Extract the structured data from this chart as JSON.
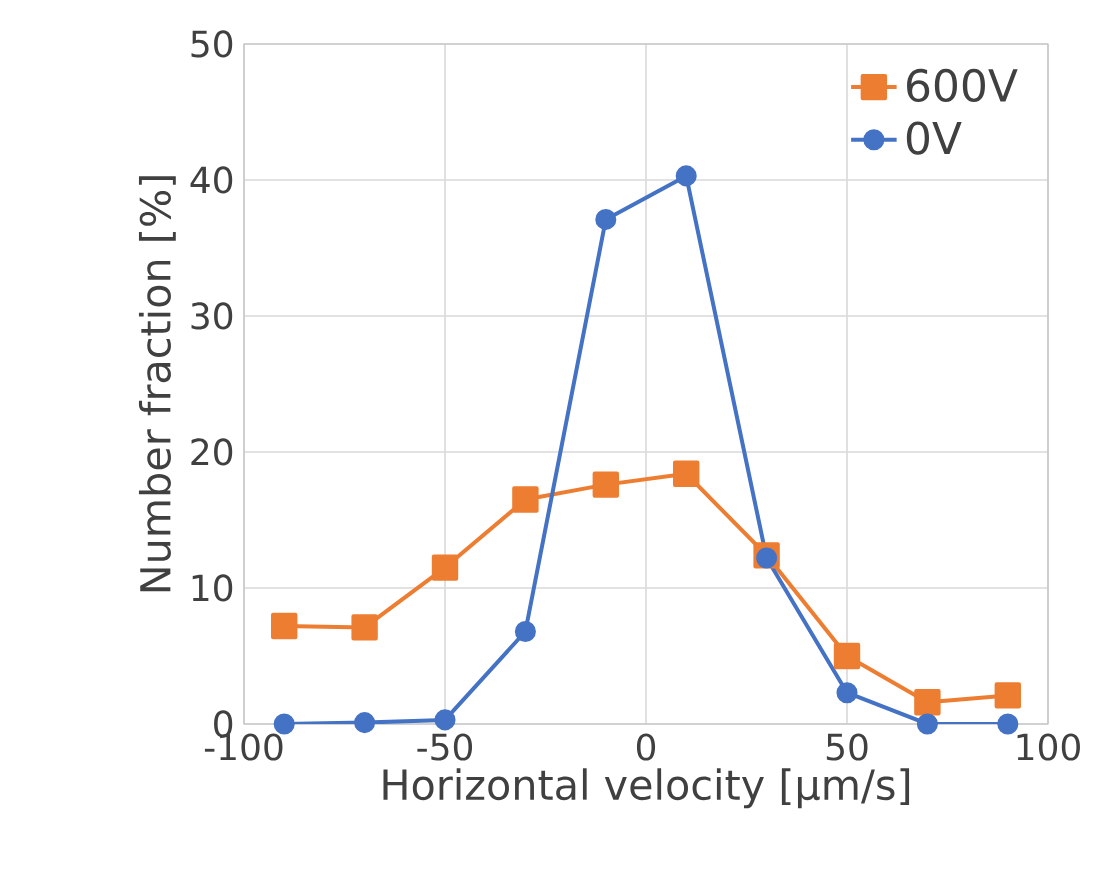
{
  "chart_data": {
    "type": "line",
    "xlabel": "Horizontal velocity [μm/s]",
    "ylabel": "Number fraction [%]",
    "x": [
      -90,
      -70,
      -50,
      -30,
      -10,
      10,
      30,
      50,
      70,
      90
    ],
    "series": [
      {
        "name": "600V",
        "color": "#ed7d31",
        "marker": "square",
        "values": [
          7.2,
          7.1,
          11.5,
          16.5,
          17.6,
          18.4,
          12.4,
          5.0,
          1.6,
          2.1
        ]
      },
      {
        "name": "0V",
        "color": "#4472c4",
        "marker": "circle",
        "values": [
          0,
          0.1,
          0.3,
          6.8,
          37.1,
          40.3,
          12.2,
          2.3,
          0,
          0
        ]
      }
    ],
    "xlim": [
      -100,
      100
    ],
    "ylim": [
      0,
      50
    ],
    "xticks": [
      -100,
      -50,
      0,
      50,
      100
    ],
    "yticks": [
      0,
      10,
      20,
      30,
      40,
      50
    ],
    "grid": true,
    "legend": "top right",
    "line_style": "solid"
  }
}
